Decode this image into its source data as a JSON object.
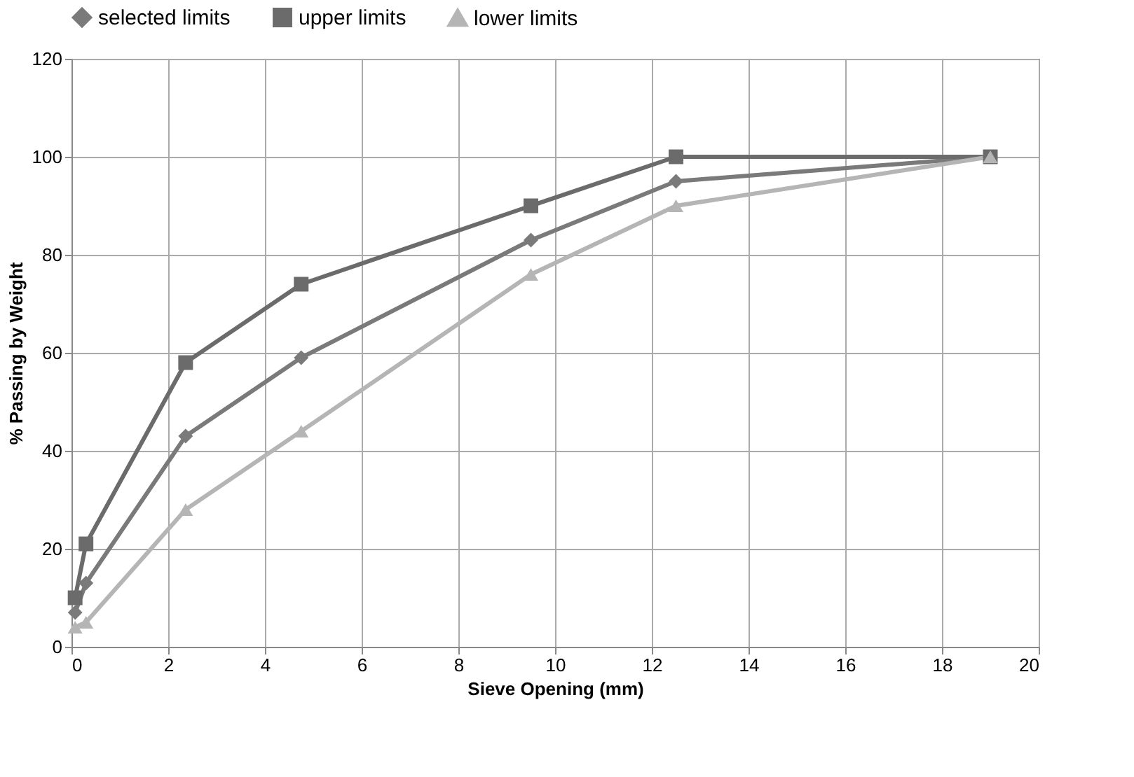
{
  "chart_data": {
    "type": "line",
    "xlabel": "Sieve Opening (mm)",
    "ylabel": "% Passing by Weight",
    "x": [
      0.075,
      0.3,
      2.36,
      4.75,
      9.5,
      12.5,
      19
    ],
    "series": [
      {
        "name": "selected limits",
        "color": "#7a7a7a",
        "marker": "diamond",
        "values": [
          7,
          13,
          43,
          59,
          83,
          95,
          100
        ]
      },
      {
        "name": "upper limits",
        "color": "#6b6b6b",
        "marker": "square",
        "values": [
          10,
          21,
          58,
          74,
          90,
          100,
          100
        ]
      },
      {
        "name": "lower limits",
        "color": "#b5b5b5",
        "marker": "triangle",
        "values": [
          4,
          5,
          28,
          44,
          76,
          90,
          100
        ]
      }
    ],
    "xlim": [
      0,
      20
    ],
    "xticks": [
      0,
      2,
      4,
      6,
      8,
      10,
      12,
      14,
      16,
      18,
      20
    ],
    "ylim": [
      0,
      120
    ],
    "yticks": [
      0,
      20,
      40,
      60,
      80,
      100,
      120
    ],
    "grid": true,
    "legend": "top",
    "line_style": "solid"
  }
}
